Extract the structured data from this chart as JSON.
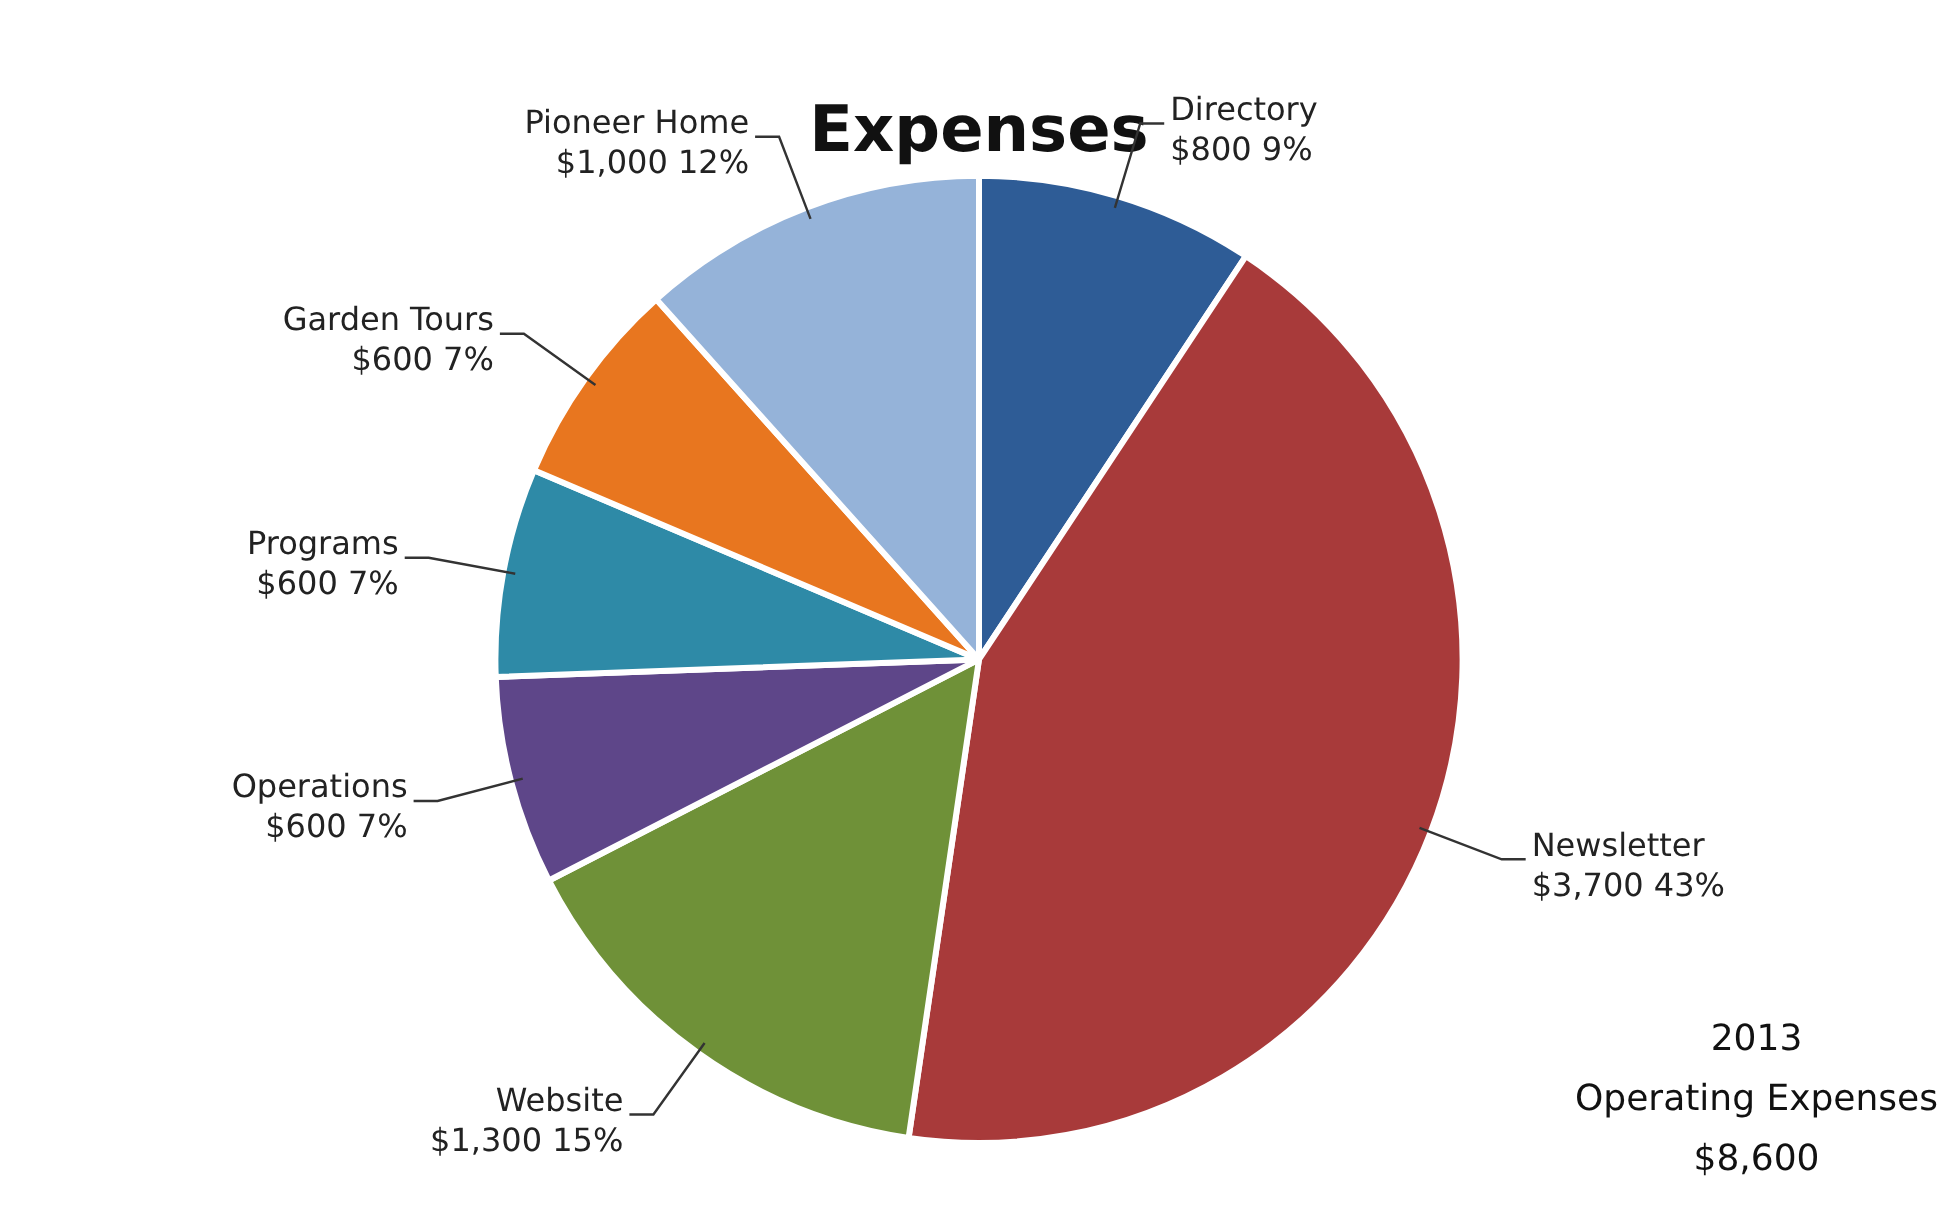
{
  "chart_data": {
    "type": "pie",
    "title": "Expenses",
    "categories": [
      "Directory",
      "Newsletter",
      "Website",
      "Operations",
      "Programs",
      "Garden Tours",
      "Pioneer Home"
    ],
    "values": [
      800,
      3700,
      1300,
      600,
      600,
      600,
      1000
    ],
    "value_labels": [
      "$800 9%",
      "$3,700 43%",
      "$1,300 15%",
      "$600 7%",
      "$600 7%",
      "$600 7%",
      "$1,000 12%"
    ],
    "colors": [
      "#2e5c96",
      "#a83a3a",
      "#6f9138",
      "#5e4689",
      "#2e8aa7",
      "#e8761f",
      "#95b3d9"
    ],
    "legend": false,
    "annotations": [
      "2013",
      "Operating Expenses",
      "$8,600"
    ]
  }
}
